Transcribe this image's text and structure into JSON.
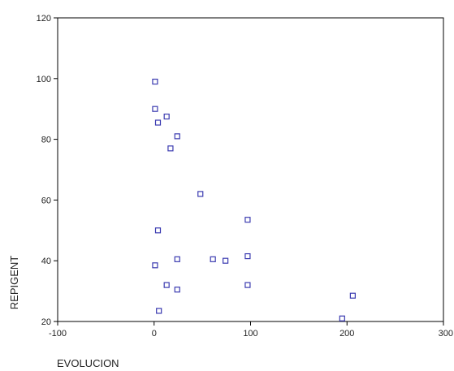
{
  "chart_data": {
    "type": "scatter",
    "xlabel": "EVOLUCION",
    "ylabel": "REPIGENT",
    "xlim": [
      -100,
      300
    ],
    "ylim": [
      20,
      120
    ],
    "xticks": [
      "-100",
      "0",
      "100",
      "200",
      "300"
    ],
    "yticks": [
      "20",
      "40",
      "60",
      "80",
      "100",
      "120"
    ],
    "grid": false,
    "marker": "open-square",
    "marker_color": "#3a3ab0",
    "points": [
      {
        "x": 1,
        "y": 99
      },
      {
        "x": 1,
        "y": 90
      },
      {
        "x": 4,
        "y": 85.5
      },
      {
        "x": 13,
        "y": 87.5
      },
      {
        "x": 24,
        "y": 81
      },
      {
        "x": 17,
        "y": 77
      },
      {
        "x": 48,
        "y": 62
      },
      {
        "x": 4,
        "y": 50
      },
      {
        "x": 1,
        "y": 38.5
      },
      {
        "x": 24,
        "y": 40.5
      },
      {
        "x": 13,
        "y": 32
      },
      {
        "x": 24,
        "y": 30.5
      },
      {
        "x": 5,
        "y": 23.5
      },
      {
        "x": 61,
        "y": 40.5
      },
      {
        "x": 74,
        "y": 40
      },
      {
        "x": 97,
        "y": 53.5
      },
      {
        "x": 97,
        "y": 41.5
      },
      {
        "x": 97,
        "y": 32
      },
      {
        "x": 195,
        "y": 21
      },
      {
        "x": 206,
        "y": 28.5
      }
    ]
  }
}
